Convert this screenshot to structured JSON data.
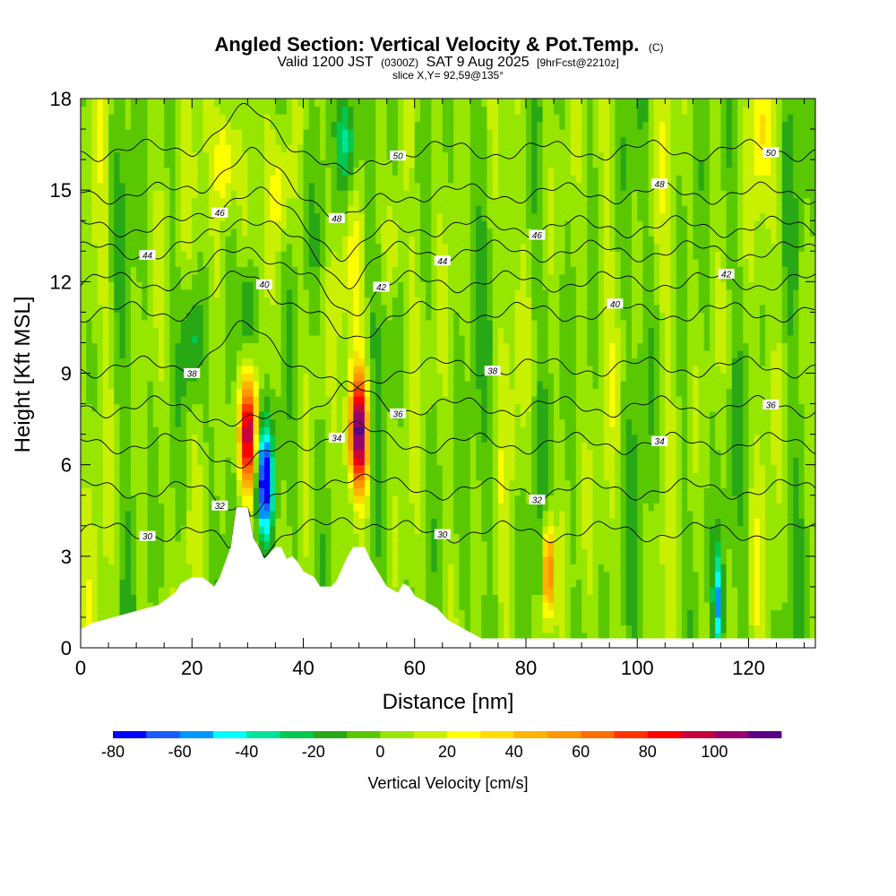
{
  "header": {
    "title": "Angled Section: Vertical Velocity & Pot.Temp.",
    "title_suffix": "(C)",
    "valid_prefix": "Valid 1200 JST",
    "valid_zulu": "(0300Z)",
    "valid_date": "SAT 9 Aug 2025",
    "forecast": "[9hrFcst@2210z]",
    "slice": "slice X,Y= 92,59@135°"
  },
  "colorbar": {
    "label": "Vertical Velocity [cm/s]",
    "levels": [
      -80,
      -70,
      -60,
      -50,
      -40,
      -30,
      -20,
      -10,
      0,
      10,
      20,
      30,
      40,
      50,
      60,
      70,
      80,
      90,
      100,
      110
    ],
    "tick_values": [
      -80,
      -60,
      -40,
      -20,
      0,
      20,
      40,
      60,
      80,
      100
    ],
    "tick_labels": [
      "-80",
      "-60",
      "-40",
      "-20",
      "0",
      "20",
      "40",
      "60",
      "80",
      "100"
    ],
    "colors": [
      "#0000ff",
      "#1a5cff",
      "#0096ff",
      "#00ffff",
      "#00e39a",
      "#00c850",
      "#28a814",
      "#5ac800",
      "#96e600",
      "#c8f000",
      "#ffff00",
      "#ffdc00",
      "#ffb400",
      "#ff9600",
      "#ff6e00",
      "#ff3200",
      "#ff0000",
      "#c8003c",
      "#96006e",
      "#5a0087"
    ]
  },
  "chart_data": {
    "type": "heatmap",
    "overlay": "contour",
    "x": {
      "label": "Distance [nm]",
      "range": [
        0,
        132
      ],
      "ticks": [
        0,
        20,
        40,
        60,
        80,
        100,
        120
      ]
    },
    "y": {
      "label": "Height [Kft MSL]",
      "range": [
        0,
        18
      ],
      "ticks": [
        0,
        3,
        6,
        9,
        12,
        15,
        18
      ]
    },
    "field": "Vertical Velocity [cm/s]",
    "updrafts": [
      {
        "x": 30,
        "y": 7.0,
        "w": 90
      },
      {
        "x": 50,
        "y": 7.0,
        "w": 110
      },
      {
        "x": 84,
        "y": 2.5,
        "w": 80
      },
      {
        "x": 26,
        "y": 16.0,
        "w": 40
      },
      {
        "x": 36,
        "y": 15.0,
        "w": 25
      },
      {
        "x": 56,
        "y": 13.0,
        "w": 25
      },
      {
        "x": 122,
        "y": 17.0,
        "w": 20
      }
    ],
    "downdrafts": [
      {
        "x": 33,
        "y": 5.5,
        "w": -80
      },
      {
        "x": 48,
        "y": 16.5,
        "w": -40
      },
      {
        "x": 30,
        "y": 11.0,
        "w": -40
      },
      {
        "x": 20,
        "y": 10.0,
        "w": -30
      },
      {
        "x": 114.5,
        "y": 1.5,
        "w": -45
      }
    ],
    "terrain_kft": [
      [
        0,
        0.6
      ],
      [
        2,
        0.8
      ],
      [
        6,
        1.0
      ],
      [
        10,
        1.2
      ],
      [
        14,
        1.4
      ],
      [
        17,
        1.8
      ],
      [
        18,
        2.1
      ],
      [
        20,
        2.3
      ],
      [
        22,
        2.3
      ],
      [
        24,
        2.0
      ],
      [
        25,
        2.3
      ],
      [
        26,
        2.8
      ],
      [
        27,
        3.3
      ],
      [
        28,
        4.6
      ],
      [
        30,
        4.6
      ],
      [
        31,
        3.6
      ],
      [
        32,
        3.3
      ],
      [
        33,
        2.9
      ],
      [
        34,
        3.1
      ],
      [
        35,
        3.3
      ],
      [
        36,
        3.3
      ],
      [
        37,
        2.9
      ],
      [
        38,
        3.0
      ],
      [
        39,
        2.8
      ],
      [
        40,
        2.5
      ],
      [
        42,
        2.3
      ],
      [
        43,
        2.0
      ],
      [
        45,
        2.0
      ],
      [
        46,
        2.2
      ],
      [
        47,
        2.6
      ],
      [
        48,
        3.0
      ],
      [
        49,
        3.3
      ],
      [
        51,
        3.3
      ],
      [
        52,
        2.9
      ],
      [
        53,
        2.6
      ],
      [
        55,
        2.0
      ],
      [
        57,
        1.8
      ],
      [
        58,
        2.1
      ],
      [
        59,
        2.0
      ],
      [
        60,
        1.7
      ],
      [
        62,
        1.5
      ],
      [
        64,
        1.3
      ],
      [
        66,
        0.9
      ],
      [
        68,
        0.7
      ],
      [
        70,
        0.5
      ],
      [
        72,
        0.3
      ],
      [
        132,
        0.3
      ]
    ],
    "theta_contours": [
      {
        "value": 30,
        "base_kft": 3.8,
        "label": "30"
      },
      {
        "value": 32,
        "base_kft": 5.2,
        "label": "32"
      },
      {
        "value": 34,
        "base_kft": 6.7,
        "label": "34"
      },
      {
        "value": 36,
        "base_kft": 7.9,
        "label": "36"
      },
      {
        "value": 38,
        "base_kft": 9.2,
        "label": "38"
      },
      {
        "value": 40,
        "base_kft": 11.0,
        "label": "40"
      },
      {
        "value": 42,
        "base_kft": 12.0,
        "label": "42"
      },
      {
        "value": 44,
        "base_kft": 13.0,
        "label": "44"
      },
      {
        "value": 46,
        "base_kft": 13.8,
        "label": "46"
      },
      {
        "value": 48,
        "base_kft": 14.9,
        "label": "48"
      },
      {
        "value": 50,
        "base_kft": 16.3,
        "label": "50"
      }
    ]
  }
}
